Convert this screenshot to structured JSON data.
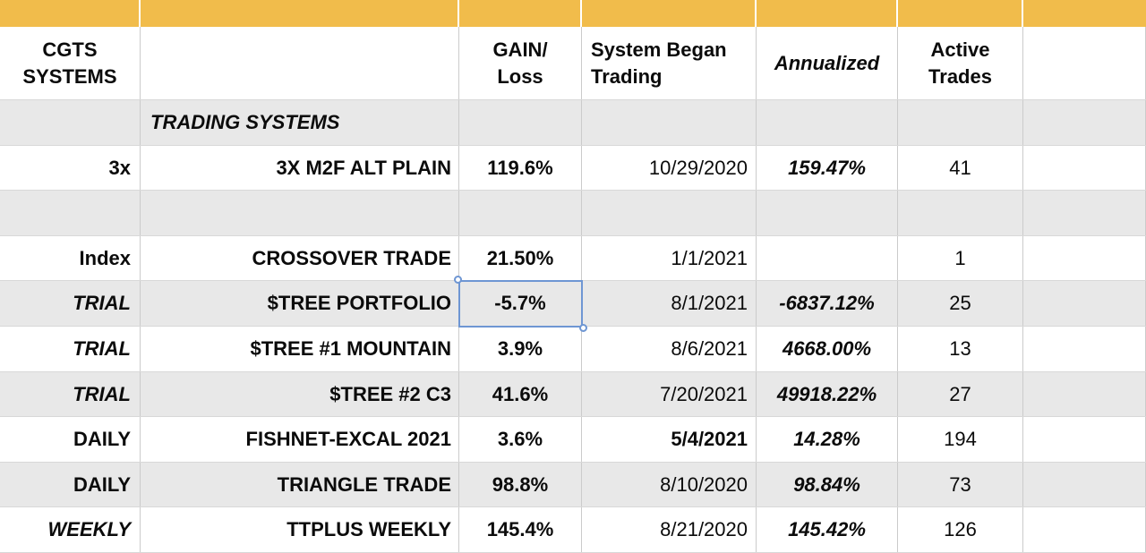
{
  "colors": {
    "header_bar": "#F1BC4B",
    "row_shade": "#E8E8E8",
    "gridline": "#CBCBCB",
    "selection_blue": "#6E96D3"
  },
  "header": {
    "col_label": "CGTS\nSYSTEMS",
    "gain": "GAIN/\nLoss",
    "began": "System Began\nTrading",
    "annualized": "Annualized",
    "active": "Active\nTrades"
  },
  "rows": [
    {
      "label": "",
      "name": "TRADING SYSTEMS",
      "section": true,
      "gain": "",
      "date": "",
      "annualized": "",
      "trades": "",
      "shade": true
    },
    {
      "label": "3x",
      "name": "3X M2F ALT PLAIN",
      "gain": "119.6%",
      "date": "10/29/2020",
      "annualized": "159.47%",
      "trades": "41",
      "shade": false
    },
    {
      "label": "",
      "name": "",
      "gain": "",
      "date": "",
      "annualized": "",
      "trades": "",
      "shade": true
    },
    {
      "label": "Index",
      "name": "CROSSOVER TRADE",
      "gain": "21.50%",
      "date": "1/1/2021",
      "annualized": "",
      "trades": "1",
      "shade": false
    },
    {
      "label": "TRIAL",
      "label_italic": true,
      "name": "$TREE PORTFOLIO",
      "gain": "-5.7%",
      "gain_selected": true,
      "date": "8/1/2021",
      "annualized": "-6837.12%",
      "trades": "25",
      "shade": true
    },
    {
      "label": "TRIAL",
      "label_italic": true,
      "name": "$TREE #1 MOUNTAIN",
      "gain": "3.9%",
      "date": "8/6/2021",
      "annualized": "4668.00%",
      "trades": "13",
      "shade": false
    },
    {
      "label": "TRIAL",
      "label_italic": true,
      "name": "$TREE #2 C3",
      "gain": "41.6%",
      "date": "7/20/2021",
      "annualized": "49918.22%",
      "trades": "27",
      "shade": true
    },
    {
      "label": "DAILY",
      "name": "FISHNET-EXCAL 2021",
      "gain": "3.6%",
      "date": "5/4/2021",
      "date_bold": true,
      "annualized": "14.28%",
      "trades": "194",
      "shade": false
    },
    {
      "label": "DAILY",
      "name": "TRIANGLE TRADE",
      "gain": "98.8%",
      "date": "8/10/2020",
      "annualized": "98.84%",
      "trades": "73",
      "shade": true
    },
    {
      "label": "WEEKLY",
      "label_italic": true,
      "name": "TTPLUS WEEKLY",
      "gain": "145.4%",
      "date": "8/21/2020",
      "annualized": "145.42%",
      "trades": "126",
      "shade": false
    }
  ]
}
